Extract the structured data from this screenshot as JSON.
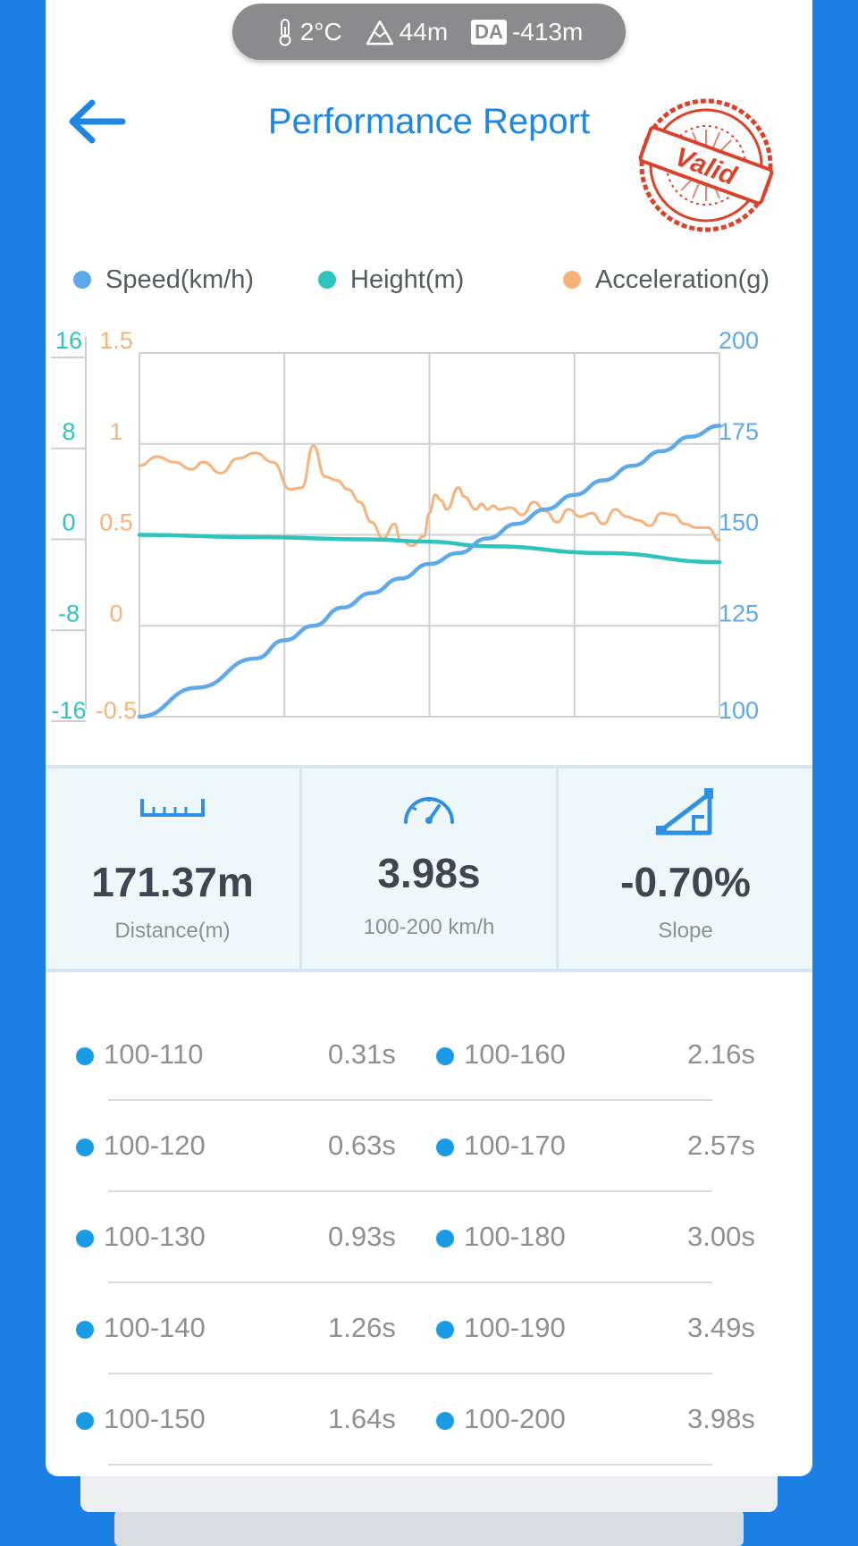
{
  "env": {
    "temperature": "2°C",
    "altitude": "44m",
    "da_badge": "DA",
    "density_altitude": "-413m"
  },
  "header": {
    "title": "Performance Report",
    "stamp_text": "Valid"
  },
  "colors": {
    "speed": "#5ea9ea",
    "height": "#2cc4bd",
    "acceleration": "#f7b27a",
    "accent": "#1f86e2",
    "stamp": "#d9432c"
  },
  "legend": {
    "speed": "Speed(km/h)",
    "height": "Height(m)",
    "acceleration": "Acceleration(g)"
  },
  "chart_data": {
    "type": "line",
    "x_range": [
      0,
      100
    ],
    "grid": true,
    "legend_position": "top",
    "axes": {
      "height_axis": {
        "ticks": [
          "16",
          "8",
          "0",
          "-8",
          "-16"
        ],
        "range": [
          -16,
          16
        ]
      },
      "accel_axis": {
        "ticks": [
          "1.5",
          "1",
          "0.5",
          "0",
          "-0.5"
        ],
        "range": [
          -0.5,
          1.5
        ]
      },
      "speed_axis": {
        "ticks": [
          "200",
          "175",
          "150",
          "125",
          "100"
        ],
        "range": [
          100,
          200
        ]
      }
    },
    "series": [
      {
        "name": "Speed(km/h)",
        "axis": "speed_axis",
        "x": [
          0,
          10,
          20,
          25,
          30,
          35,
          40,
          45,
          50,
          55,
          60,
          65,
          70,
          75,
          80,
          85,
          90,
          95,
          100
        ],
        "values": [
          100,
          108,
          116,
          121,
          125,
          130,
          134,
          138,
          142,
          145,
          149,
          153,
          157,
          161,
          165,
          169,
          173,
          177,
          180
        ]
      },
      {
        "name": "Height(m)",
        "axis": "height_axis",
        "x": [
          0,
          20,
          40,
          50,
          60,
          80,
          100
        ],
        "values": [
          0,
          -0.2,
          -0.4,
          -0.6,
          -1.0,
          -1.6,
          -2.4
        ]
      },
      {
        "name": "Acceleration(g)",
        "axis": "accel_axis",
        "x": [
          0,
          3,
          6,
          9,
          11,
          14,
          17,
          20,
          23,
          26,
          28,
          30,
          32,
          34,
          36,
          38,
          40,
          42,
          44,
          45,
          47,
          49,
          50,
          51,
          52,
          53,
          55,
          56,
          58,
          59,
          60,
          61,
          62,
          64,
          66,
          68,
          70,
          72,
          74,
          76,
          78,
          80,
          82,
          84,
          86,
          88,
          90,
          92,
          94,
          96,
          98,
          100
        ],
        "values": [
          0.88,
          0.93,
          0.9,
          0.86,
          0.9,
          0.84,
          0.92,
          0.95,
          0.9,
          0.75,
          0.76,
          0.99,
          0.82,
          0.8,
          0.75,
          0.68,
          0.57,
          0.48,
          0.56,
          0.47,
          0.44,
          0.49,
          0.62,
          0.72,
          0.69,
          0.64,
          0.76,
          0.71,
          0.64,
          0.67,
          0.64,
          0.66,
          0.64,
          0.65,
          0.61,
          0.68,
          0.63,
          0.57,
          0.64,
          0.6,
          0.62,
          0.56,
          0.64,
          0.6,
          0.58,
          0.55,
          0.62,
          0.61,
          0.56,
          0.54,
          0.54,
          0.47
        ]
      }
    ]
  },
  "stats": [
    {
      "value": "171.37m",
      "label": "Distance(m)",
      "icon": "ruler-icon"
    },
    {
      "value": "3.98s",
      "label": "100-200 km/h",
      "icon": "speedometer-icon"
    },
    {
      "value": "-0.70%",
      "label": "Slope",
      "icon": "slope-icon"
    }
  ],
  "splits": [
    {
      "left_range": "100-110",
      "left_time": "0.31s",
      "right_range": "100-160",
      "right_time": "2.16s"
    },
    {
      "left_range": "100-120",
      "left_time": "0.63s",
      "right_range": "100-170",
      "right_time": "2.57s"
    },
    {
      "left_range": "100-130",
      "left_time": "0.93s",
      "right_range": "100-180",
      "right_time": "3.00s"
    },
    {
      "left_range": "100-140",
      "left_time": "1.26s",
      "right_range": "100-190",
      "right_time": "3.49s"
    },
    {
      "left_range": "100-150",
      "left_time": "1.64s",
      "right_range": "100-200",
      "right_time": "3.98s"
    }
  ]
}
